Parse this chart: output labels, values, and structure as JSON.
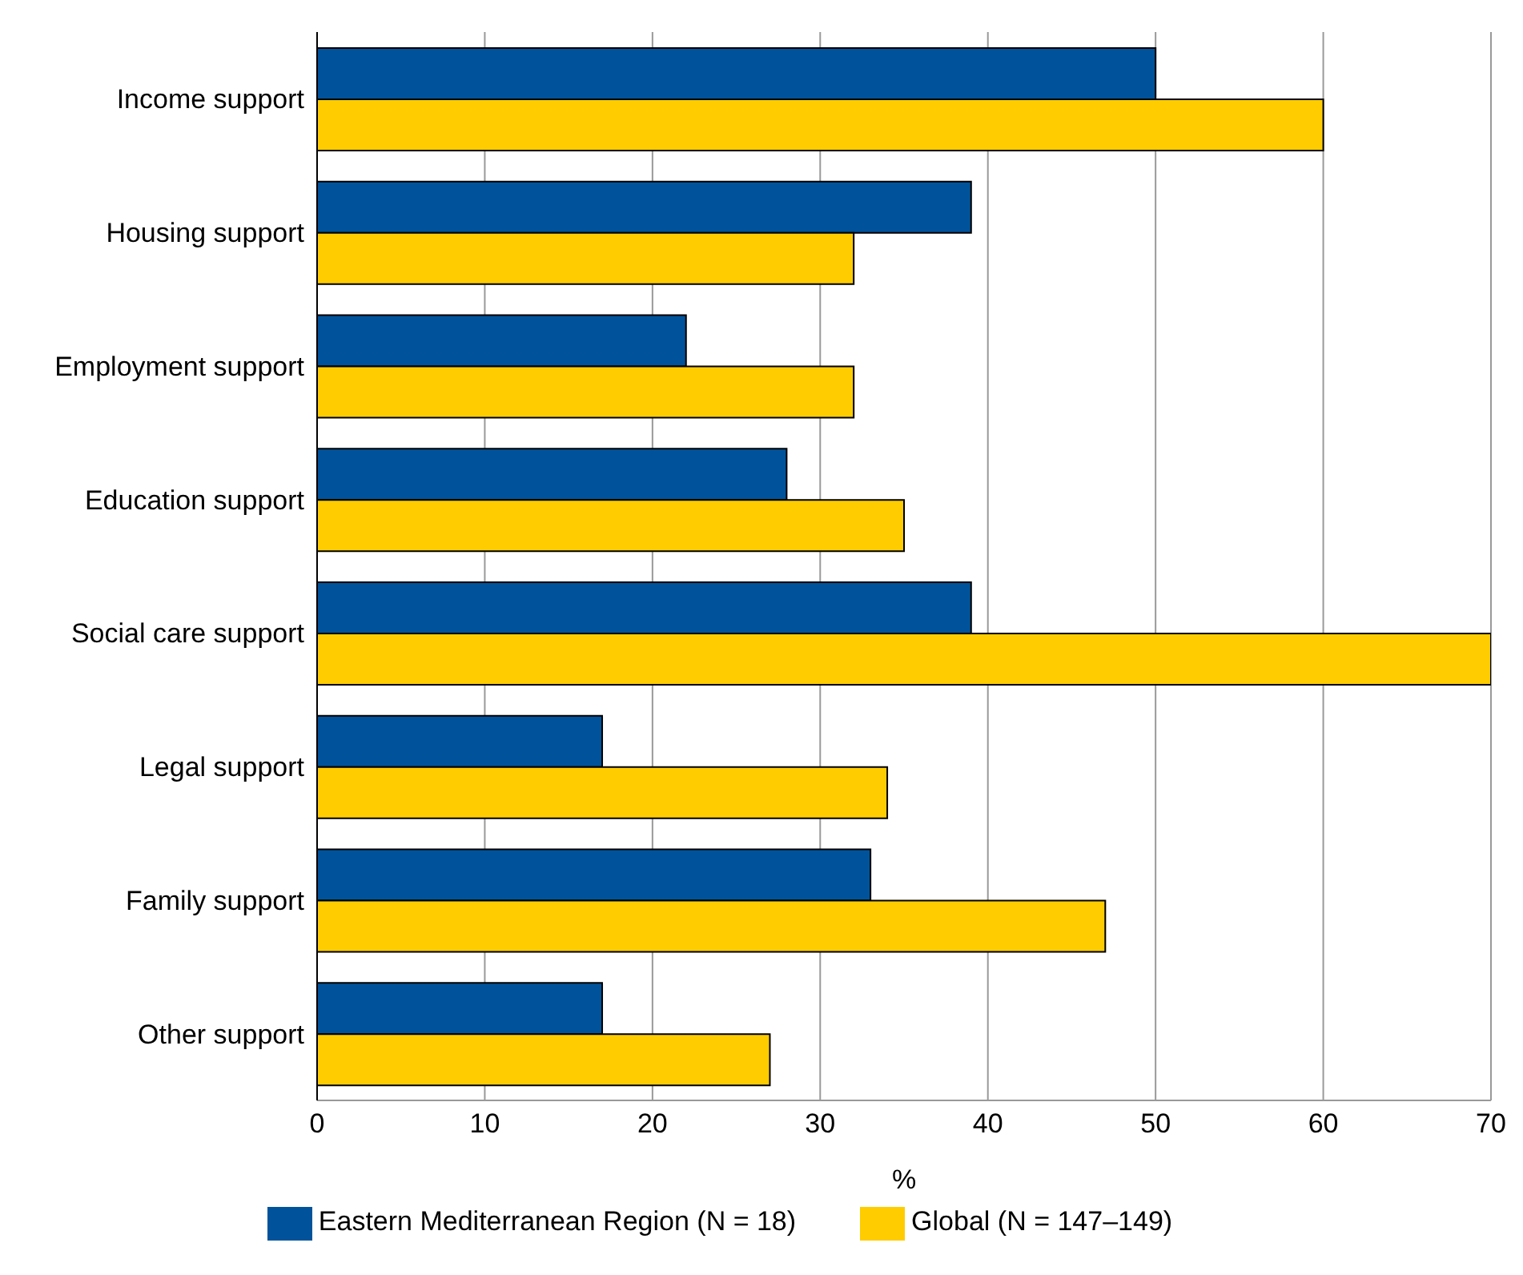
{
  "chart_data": {
    "type": "bar",
    "orientation": "horizontal",
    "xlabel": "%",
    "categories": [
      "Income support",
      "Housing support",
      "Employment support",
      "Education support",
      "Social care support",
      "Legal support",
      "Family support",
      "Other support"
    ],
    "series": [
      {
        "name": "Eastern Mediterranean Region (N = 18)",
        "color": "#00539b",
        "values": [
          50,
          39,
          22,
          28,
          39,
          17,
          33,
          17
        ]
      },
      {
        "name": "Global (N = 147–149)",
        "color": "#ffcc00",
        "values": [
          60,
          32,
          32,
          35,
          70,
          34,
          47,
          27
        ]
      }
    ],
    "xlim": [
      0,
      70
    ],
    "xticks": [
      0,
      10,
      20,
      30,
      40,
      50,
      60,
      70
    ],
    "grid": "x",
    "legend": "bottom"
  }
}
